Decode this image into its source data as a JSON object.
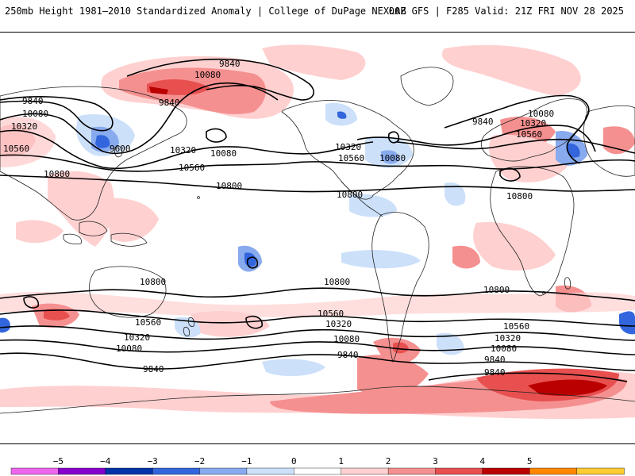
{
  "header": {
    "left_title": "250mb Height 1981–2010 Standardized Anomaly | College of DuPage NEXLAB",
    "right_title": "00Z GFS | F285 Valid: 21Z FRI NOV 28 2025"
  },
  "contour_labels": [
    "9840",
    "10080",
    "10320",
    "10560",
    "10800",
    "9840",
    "10080",
    "10320",
    "10560",
    "10800",
    "9600",
    "10320",
    "10080",
    "10560",
    "10800",
    "10320",
    "10560",
    "10080",
    "10800",
    "9840",
    "10080",
    "10320",
    "10560",
    "10800",
    "10800",
    "10560",
    "10320",
    "10080",
    "9840",
    "10800",
    "10560",
    "10320",
    "10080",
    "9840",
    "10800",
    "10560",
    "10320",
    "10080",
    "9840",
    "10560",
    "10080",
    "10800"
  ],
  "colorbar": {
    "ticks": [
      "−5",
      "−4",
      "−3",
      "−2",
      "−1",
      "0",
      "1",
      "2",
      "3",
      "4",
      "5"
    ],
    "colors": [
      "#ee66ee",
      "#8800cc",
      "#0033aa",
      "#3366dd",
      "#88aaee",
      "#cce0fa",
      "#ffffff",
      "#ffd0d0",
      "#f59090",
      "#e85050",
      "#bb0000",
      "#ff8800",
      "#ffcc33"
    ]
  }
}
